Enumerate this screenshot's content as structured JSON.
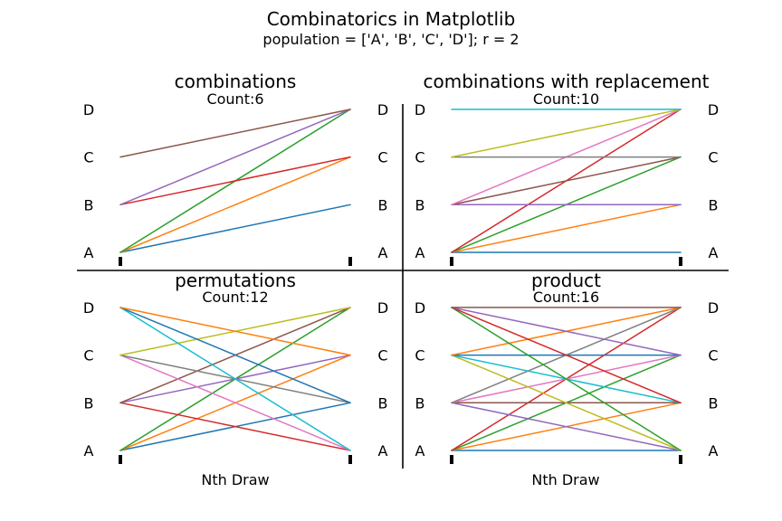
{
  "chart_data": {
    "type": "line",
    "title": "Combinatorics in Matplotlib",
    "subtitle": "population = ['A', 'B', 'C', 'D']; r = 2",
    "xlabel": "Nth Draw",
    "population": [
      "A",
      "B",
      "C",
      "D"
    ],
    "colors": [
      "#1f77b4",
      "#ff7f0e",
      "#2ca02c",
      "#d62728",
      "#9467bd",
      "#8c564b",
      "#e377c2",
      "#7f7f7f",
      "#bcbd22",
      "#17becf"
    ],
    "panels": [
      {
        "name": "combinations",
        "title": "combinations",
        "count_label": "Count:6",
        "pairs": [
          [
            "A",
            "B"
          ],
          [
            "A",
            "C"
          ],
          [
            "A",
            "D"
          ],
          [
            "B",
            "C"
          ],
          [
            "B",
            "D"
          ],
          [
            "C",
            "D"
          ]
        ]
      },
      {
        "name": "combinations-with-replacement",
        "title": "combinations with replacement",
        "count_label": "Count:10",
        "pairs": [
          [
            "A",
            "A"
          ],
          [
            "A",
            "B"
          ],
          [
            "A",
            "C"
          ],
          [
            "A",
            "D"
          ],
          [
            "B",
            "B"
          ],
          [
            "B",
            "C"
          ],
          [
            "B",
            "D"
          ],
          [
            "C",
            "C"
          ],
          [
            "C",
            "D"
          ],
          [
            "D",
            "D"
          ]
        ]
      },
      {
        "name": "permutations",
        "title": "permutations",
        "count_label": "Count:12",
        "pairs": [
          [
            "A",
            "B"
          ],
          [
            "A",
            "C"
          ],
          [
            "A",
            "D"
          ],
          [
            "B",
            "A"
          ],
          [
            "B",
            "C"
          ],
          [
            "B",
            "D"
          ],
          [
            "C",
            "A"
          ],
          [
            "C",
            "B"
          ],
          [
            "C",
            "D"
          ],
          [
            "D",
            "A"
          ],
          [
            "D",
            "B"
          ],
          [
            "D",
            "C"
          ]
        ]
      },
      {
        "name": "product",
        "title": "product",
        "count_label": "Count:16",
        "pairs": [
          [
            "A",
            "A"
          ],
          [
            "A",
            "B"
          ],
          [
            "A",
            "C"
          ],
          [
            "A",
            "D"
          ],
          [
            "B",
            "A"
          ],
          [
            "B",
            "B"
          ],
          [
            "B",
            "C"
          ],
          [
            "B",
            "D"
          ],
          [
            "C",
            "A"
          ],
          [
            "C",
            "B"
          ],
          [
            "C",
            "C"
          ],
          [
            "C",
            "D"
          ],
          [
            "D",
            "A"
          ],
          [
            "D",
            "B"
          ],
          [
            "D",
            "C"
          ],
          [
            "D",
            "D"
          ]
        ]
      }
    ]
  }
}
